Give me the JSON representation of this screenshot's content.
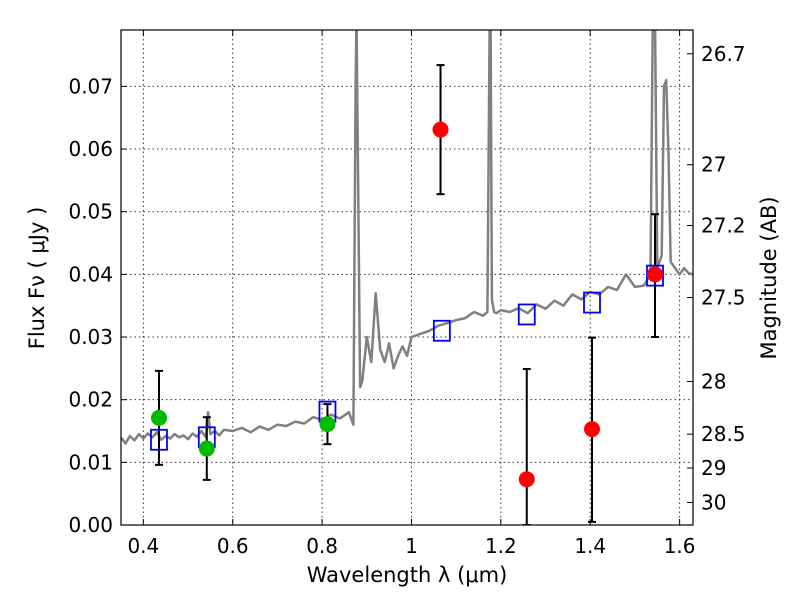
{
  "chart_data": {
    "type": "scatter",
    "xlabel": "Wavelength  λ (μm)",
    "ylabel": "Flux  Fν  ( μJy )",
    "y2label": "Magnitude (AB)",
    "xlim": [
      0.35,
      1.63
    ],
    "ylim": [
      0.0,
      0.079
    ],
    "grid": true,
    "x_ticks": [
      0.4,
      0.6,
      0.8,
      1.0,
      1.2,
      1.4,
      1.6
    ],
    "x_tick_labels": [
      "0.4",
      "0.6",
      "0.8",
      "1",
      "1.2",
      "1.4",
      "1.6"
    ],
    "y_ticks": [
      0.0,
      0.01,
      0.02,
      0.03,
      0.04,
      0.05,
      0.06,
      0.07
    ],
    "y_tick_labels": [
      "0.00",
      "0.01",
      "0.02",
      "0.03",
      "0.04",
      "0.05",
      "0.06",
      "0.07"
    ],
    "y2_ticks": [
      {
        "label": "26.7",
        "flux": 0.0752
      },
      {
        "label": "27",
        "flux": 0.0575
      },
      {
        "label": "27.2",
        "flux": 0.0478
      },
      {
        "label": "27.5",
        "flux": 0.0363
      },
      {
        "label": "28",
        "flux": 0.0229
      },
      {
        "label": "28.5",
        "flux": 0.0145
      },
      {
        "label": "29",
        "flux": 0.0091
      },
      {
        "label": "30",
        "flux": 0.0036
      }
    ],
    "colors": {
      "model": "#808080",
      "green_points": "#00bb00",
      "red_points": "#ff0000",
      "model_photometry": "#0000ff",
      "errorbars": "#000000"
    },
    "series": [
      {
        "kind": "spectrum",
        "x": [
          0.35,
          0.36,
          0.37,
          0.38,
          0.39,
          0.4,
          0.41,
          0.42,
          0.43,
          0.44,
          0.45,
          0.46,
          0.47,
          0.48,
          0.49,
          0.5,
          0.51,
          0.52,
          0.53,
          0.54,
          0.545,
          0.55,
          0.56,
          0.57,
          0.58,
          0.6,
          0.62,
          0.64,
          0.66,
          0.68,
          0.7,
          0.72,
          0.74,
          0.76,
          0.78,
          0.8,
          0.82,
          0.84,
          0.86,
          0.87,
          0.875,
          0.877,
          0.88,
          0.885,
          0.89,
          0.9,
          0.91,
          0.92,
          0.93,
          0.94,
          0.95,
          0.96,
          0.97,
          0.98,
          0.99,
          1.0,
          1.02,
          1.04,
          1.06,
          1.08,
          1.1,
          1.12,
          1.14,
          1.16,
          1.17,
          1.175,
          1.177,
          1.18,
          1.185,
          1.19,
          1.2,
          1.22,
          1.24,
          1.26,
          1.28,
          1.3,
          1.32,
          1.34,
          1.36,
          1.38,
          1.4,
          1.42,
          1.44,
          1.46,
          1.48,
          1.5,
          1.52,
          1.535,
          1.54,
          1.545,
          1.55,
          1.56,
          1.565,
          1.57,
          1.575,
          1.58,
          1.59,
          1.6,
          1.61,
          1.62,
          1.63
        ],
        "y": [
          0.014,
          0.013,
          0.0142,
          0.0135,
          0.0145,
          0.0138,
          0.0146,
          0.014,
          0.0148,
          0.0136,
          0.0142,
          0.0138,
          0.0145,
          0.014,
          0.0143,
          0.0137,
          0.0146,
          0.0141,
          0.015,
          0.014,
          0.018,
          0.0145,
          0.015,
          0.0143,
          0.0152,
          0.015,
          0.0155,
          0.0148,
          0.0157,
          0.0152,
          0.016,
          0.0158,
          0.0165,
          0.0162,
          0.0172,
          0.0168,
          0.0176,
          0.017,
          0.018,
          0.016,
          0.07,
          0.081,
          0.06,
          0.022,
          0.023,
          0.03,
          0.026,
          0.037,
          0.028,
          0.026,
          0.029,
          0.025,
          0.027,
          0.0285,
          0.027,
          0.03,
          0.0305,
          0.031,
          0.0318,
          0.0322,
          0.0327,
          0.033,
          0.034,
          0.0334,
          0.034,
          0.081,
          0.081,
          0.036,
          0.034,
          0.0338,
          0.0343,
          0.034,
          0.0346,
          0.0338,
          0.0352,
          0.0345,
          0.0358,
          0.035,
          0.0368,
          0.036,
          0.0372,
          0.0368,
          0.038,
          0.0375,
          0.04,
          0.038,
          0.0382,
          0.04,
          0.081,
          0.081,
          0.041,
          0.043,
          0.07,
          0.071,
          0.06,
          0.042,
          0.041,
          0.04,
          0.041,
          0.0402,
          0.04
        ]
      },
      {
        "kind": "green_points",
        "points": [
          {
            "x": 0.435,
            "y": 0.0171,
            "err_low": 0.0075,
            "err_high": 0.0075
          },
          {
            "x": 0.542,
            "y": 0.0122,
            "err_low": 0.005,
            "err_high": 0.005
          },
          {
            "x": 0.812,
            "y": 0.0161,
            "err_low": 0.0032,
            "err_high": 0.0032
          }
        ]
      },
      {
        "kind": "red_points",
        "points": [
          {
            "x": 1.065,
            "y": 0.0631,
            "err_low": 0.0103,
            "err_high": 0.0103
          },
          {
            "x": 1.258,
            "y": 0.0073,
            "err_low": 0.0073,
            "err_high": 0.0176
          },
          {
            "x": 1.404,
            "y": 0.0153,
            "err_low": 0.0148,
            "err_high": 0.0146
          },
          {
            "x": 1.545,
            "y": 0.04,
            "err_low": 0.01,
            "err_high": 0.0096
          }
        ]
      },
      {
        "kind": "model_photometry",
        "points": [
          {
            "x": 0.435,
            "y": 0.0136
          },
          {
            "x": 0.542,
            "y": 0.014
          },
          {
            "x": 0.812,
            "y": 0.0181
          },
          {
            "x": 1.068,
            "y": 0.031
          },
          {
            "x": 1.258,
            "y": 0.0336
          },
          {
            "x": 1.404,
            "y": 0.0355
          },
          {
            "x": 1.545,
            "y": 0.0398
          }
        ]
      }
    ]
  }
}
